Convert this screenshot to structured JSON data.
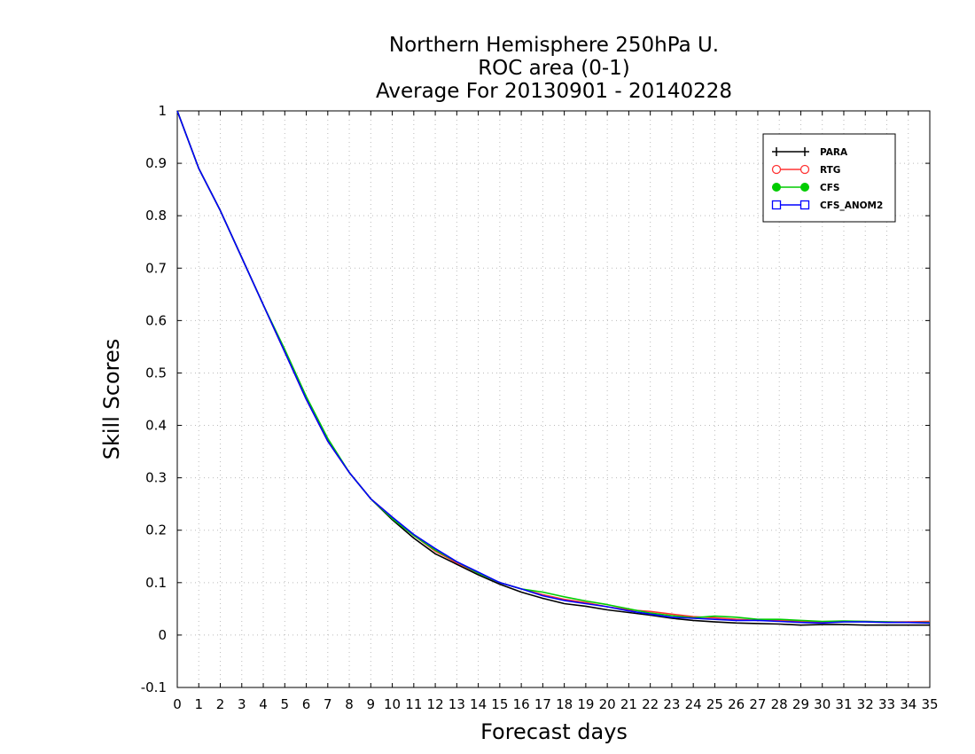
{
  "chart_data": {
    "type": "line",
    "title": [
      "Northern Hemisphere 250hPa U.",
      "ROC area (0-1)",
      "Average For 20130901 - 20140228"
    ],
    "xlabel": "Forecast days",
    "ylabel": "Skill Scores",
    "xlim": [
      0,
      35
    ],
    "ylim": [
      -0.1,
      1
    ],
    "x_ticks": [
      0,
      1,
      2,
      3,
      4,
      5,
      6,
      7,
      8,
      9,
      10,
      11,
      12,
      13,
      14,
      15,
      16,
      17,
      18,
      19,
      20,
      21,
      22,
      23,
      24,
      25,
      26,
      27,
      28,
      29,
      30,
      31,
      32,
      33,
      34,
      35
    ],
    "y_ticks": [
      -0.1,
      0,
      0.1,
      0.2,
      0.3,
      0.4,
      0.5,
      0.6,
      0.7,
      0.8,
      0.9,
      1
    ],
    "y_tick_labels": [
      "-0.1",
      "0",
      "0.1",
      "0.2",
      "0.3",
      "0.4",
      "0.5",
      "0.6",
      "0.7",
      "0.8",
      "0.9",
      "1"
    ],
    "grid": true,
    "legend_position": "top-right",
    "x": [
      0,
      1,
      2,
      3,
      4,
      5,
      6,
      7,
      8,
      9,
      10,
      11,
      12,
      13,
      14,
      15,
      16,
      17,
      18,
      19,
      20,
      21,
      22,
      23,
      24,
      25,
      26,
      27,
      28,
      29,
      30,
      31,
      32,
      33,
      34,
      35
    ],
    "series": [
      {
        "name": "PARA",
        "color": "#000000",
        "marker": "plus",
        "values": [
          1.0,
          0.89,
          0.81,
          0.72,
          0.63,
          0.54,
          0.45,
          0.37,
          0.31,
          0.26,
          0.22,
          0.185,
          0.155,
          0.135,
          0.115,
          0.097,
          0.082,
          0.07,
          0.06,
          0.055,
          0.048,
          0.043,
          0.038,
          0.032,
          0.028,
          0.025,
          0.023,
          0.022,
          0.021,
          0.019,
          0.02,
          0.02,
          0.019,
          0.019,
          0.019,
          0.019
        ]
      },
      {
        "name": "RTG",
        "color": "#ff3333",
        "marker": "open-circle",
        "values": [
          1.0,
          0.89,
          0.81,
          0.72,
          0.63,
          0.54,
          0.45,
          0.37,
          0.31,
          0.26,
          0.225,
          0.19,
          0.16,
          0.138,
          0.118,
          0.1,
          0.088,
          0.077,
          0.068,
          0.062,
          0.054,
          0.048,
          0.045,
          0.04,
          0.035,
          0.033,
          0.03,
          0.028,
          0.028,
          0.026,
          0.025,
          0.026,
          0.026,
          0.025,
          0.025,
          0.026
        ]
      },
      {
        "name": "CFS",
        "color": "#00cc00",
        "marker": "filled-circle",
        "values": [
          1.0,
          0.89,
          0.81,
          0.72,
          0.63,
          0.545,
          0.455,
          0.375,
          0.31,
          0.26,
          0.222,
          0.19,
          0.162,
          0.14,
          0.118,
          0.1,
          0.088,
          0.082,
          0.073,
          0.065,
          0.058,
          0.05,
          0.042,
          0.037,
          0.033,
          0.036,
          0.034,
          0.03,
          0.03,
          0.028,
          0.026,
          0.027,
          0.026,
          0.025,
          0.024,
          0.024
        ]
      },
      {
        "name": "CFS_ANOM2",
        "color": "#0000ff",
        "marker": "open-square",
        "values": [
          1.0,
          0.89,
          0.81,
          0.72,
          0.63,
          0.54,
          0.45,
          0.37,
          0.31,
          0.26,
          0.225,
          0.192,
          0.165,
          0.14,
          0.12,
          0.1,
          0.088,
          0.075,
          0.066,
          0.06,
          0.054,
          0.046,
          0.04,
          0.034,
          0.032,
          0.03,
          0.028,
          0.028,
          0.026,
          0.024,
          0.023,
          0.025,
          0.025,
          0.024,
          0.024,
          0.023
        ]
      }
    ]
  }
}
